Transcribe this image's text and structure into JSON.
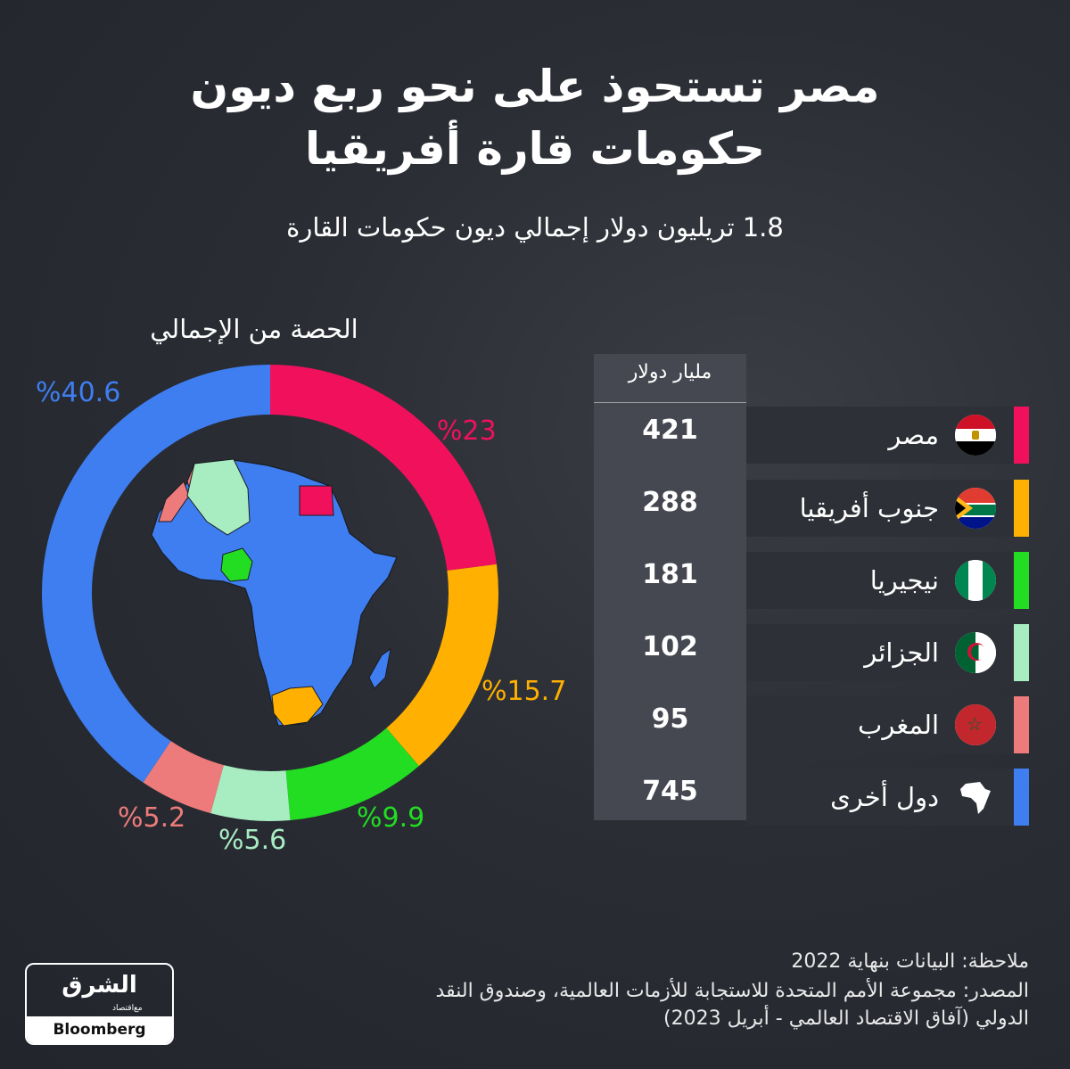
{
  "title_line1": "مصر تستحوذ على نحو ربع ديون",
  "title_line2": "حكومات قارة أفريقيا",
  "subtitle": "1.8 تريليون دولار إجمالي ديون حكومات القارة",
  "share_label": "الحصة من الإجمالي",
  "value_header": "مليار دولار",
  "note": "ملاحظة: البيانات بنهاية 2022",
  "source_line1": "المصدر:  مجموعة الأمم المتحدة للاستجابة للأزمات العالمية، وصندوق النقد",
  "source_line2": "الدولي (آفاق الاقتصاد العالمي - أبريل 2023)",
  "logo": {
    "name": "الشرق",
    "sub": "اقتصاد",
    "with": "مع",
    "bloomberg": "Bloomberg"
  },
  "colors": {
    "egypt": "#f0105c",
    "south_africa": "#ffb000",
    "nigeria": "#22dd22",
    "algeria": "#a8ecc2",
    "morocco": "#ee7b7b",
    "others": "#3f7ef0"
  },
  "chart_data": {
    "type": "pie",
    "series": [
      {
        "name": "مصر",
        "value": 421,
        "share": 23,
        "share_label": "%23",
        "color": "#f0105c",
        "flag": "egypt-flag-icon"
      },
      {
        "name": "جنوب أفريقيا",
        "value": 288,
        "share": 15.7,
        "share_label": "%15.7",
        "color": "#ffb000",
        "flag": "south-africa-flag-icon"
      },
      {
        "name": "نيجيريا",
        "value": 181,
        "share": 9.9,
        "share_label": "%9.9",
        "color": "#22dd22",
        "flag": "nigeria-flag-icon"
      },
      {
        "name": "الجزائر",
        "value": 102,
        "share": 5.6,
        "share_label": "%5.6",
        "color": "#a8ecc2",
        "flag": "algeria-flag-icon"
      },
      {
        "name": "المغرب",
        "value": 95,
        "share": 5.2,
        "share_label": "%5.2",
        "color": "#ee7b7b",
        "flag": "morocco-flag-icon"
      },
      {
        "name": "دول أخرى",
        "value": 745,
        "share": 40.6,
        "share_label": "%40.6",
        "color": "#3f7ef0",
        "flag": "africa-map-icon"
      }
    ]
  }
}
